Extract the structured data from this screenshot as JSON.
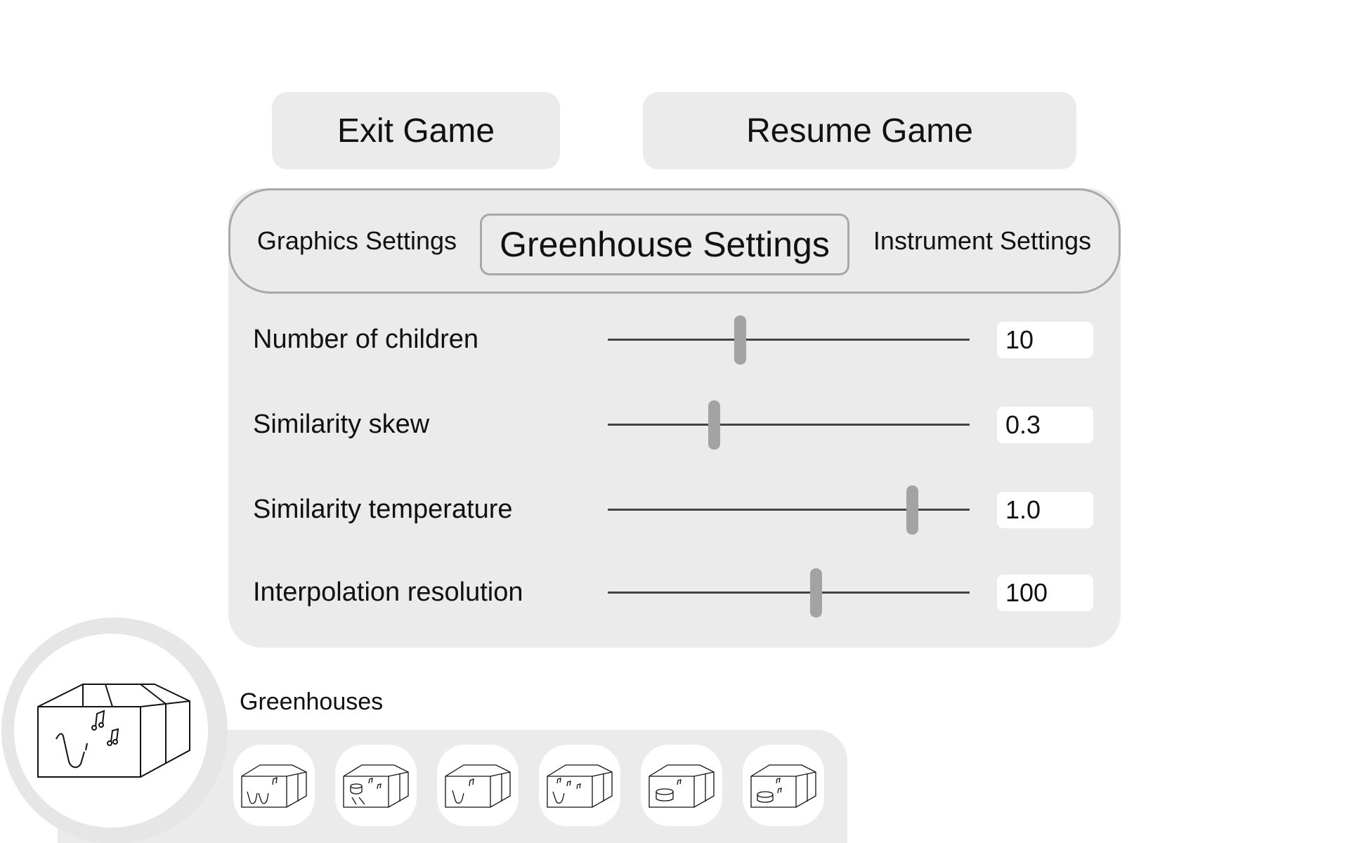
{
  "menu": {
    "exit_label": "Exit Game",
    "resume_label": "Resume Game"
  },
  "tabs": [
    {
      "label": "Graphics Settings",
      "active": false
    },
    {
      "label": "Greenhouse Settings",
      "active": true
    },
    {
      "label": "Instrument Settings",
      "active": false
    }
  ],
  "settings": [
    {
      "label": "Number of children",
      "value": "10",
      "slider_fraction": 0.365
    },
    {
      "label": "Similarity skew",
      "value": "0.3",
      "slider_fraction": 0.293
    },
    {
      "label": "Similarity temperature",
      "value": "1.0",
      "slider_fraction": 0.84
    },
    {
      "label": "Interpolation resolution",
      "value": "100",
      "slider_fraction": 0.575
    }
  ],
  "greenhouses": {
    "title": "Greenhouses",
    "selected_icon": "greenhouse-saxophone-icon",
    "items": [
      {
        "icon": "greenhouse-double-saxophone-icon"
      },
      {
        "icon": "greenhouse-drum-guitar-icon"
      },
      {
        "icon": "greenhouse-saxophone-icon"
      },
      {
        "icon": "greenhouse-saxophone-notes-icon"
      },
      {
        "icon": "greenhouse-drum-icon"
      },
      {
        "icon": "greenhouse-drum-small-icon"
      }
    ]
  }
}
